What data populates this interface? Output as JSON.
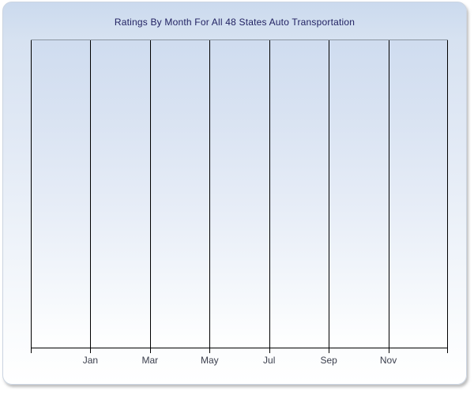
{
  "chart_data": {
    "type": "line",
    "title": "Ratings By Month For All 48 States Auto Transportation",
    "xlabel": "",
    "ylabel": "",
    "x_tick_labels": [
      "Jan",
      "Mar",
      "May",
      "Jul",
      "Sep",
      "Nov"
    ],
    "y_tick_labels": [],
    "series": [],
    "grid": "vertical-only",
    "legend_position": "none",
    "x_gridline_count": 8,
    "colors": {
      "gridline": "#000000",
      "axis_line": "#000000",
      "plot_top_border": "#8b95a1",
      "title_text": "#1f1f60",
      "tick_label_text": "#3a3e4c",
      "panel_gradient_top": "#cbdaee",
      "panel_gradient_bottom": "#ffffff",
      "plot_gradient_top": "#cfdcef",
      "plot_gradient_bottom": "#ffffff"
    }
  }
}
